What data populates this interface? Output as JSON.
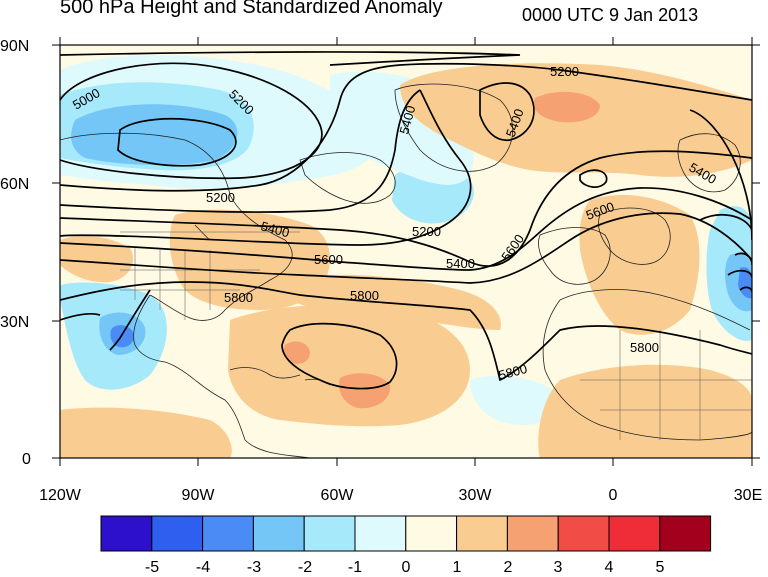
{
  "header": {
    "title": "500 hPa Height and Standardized Anomaly",
    "timestamp": "0000 UTC 9 Jan 2013"
  },
  "axes": {
    "lat_labels": [
      "90N",
      "60N",
      "30N",
      "0"
    ],
    "lon_labels": [
      "120W",
      "90W",
      "60W",
      "30W",
      "0",
      "30E"
    ]
  },
  "contour_labels": [
    "5000",
    "5200",
    "5200",
    "5200",
    "5200",
    "5400",
    "5400",
    "5400",
    "5400",
    "5400",
    "5600",
    "5600",
    "5600",
    "5800",
    "5800",
    "5800",
    "5800"
  ],
  "colorbar": {
    "labels": [
      "-5",
      "-4",
      "-3",
      "-2",
      "-1",
      "0",
      "1",
      "2",
      "3",
      "4",
      "5"
    ],
    "colors": [
      "#2c10cc",
      "#2f5fee",
      "#4a8bf5",
      "#74c6f7",
      "#a6e9fb",
      "#dffafc",
      "#fefae3",
      "#f9cd92",
      "#f6a172",
      "#f24c46",
      "#ee2d38",
      "#a2001d"
    ]
  }
}
